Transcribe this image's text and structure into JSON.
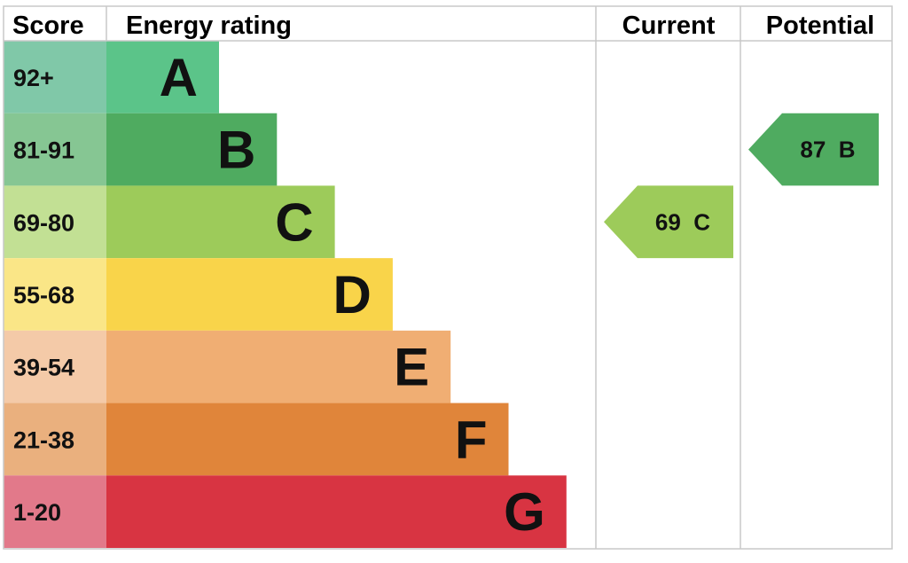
{
  "headers": {
    "score": "Score",
    "energy_rating": "Energy rating",
    "current": "Current",
    "potential": "Potential"
  },
  "chart_data": {
    "type": "bar",
    "bands": [
      {
        "letter": "A",
        "range": "92+",
        "min": 92,
        "max": 100,
        "color": "#5bc489",
        "score_bg": "#80c8a8"
      },
      {
        "letter": "B",
        "range": "81-91",
        "min": 81,
        "max": 91,
        "color": "#4fab60",
        "score_bg": "#86c693"
      },
      {
        "letter": "C",
        "range": "69-80",
        "min": 69,
        "max": 80,
        "color": "#9dcb5a",
        "score_bg": "#c2e094"
      },
      {
        "letter": "D",
        "range": "55-68",
        "min": 55,
        "max": 68,
        "color": "#f9d44a",
        "score_bg": "#fae687"
      },
      {
        "letter": "E",
        "range": "39-54",
        "min": 39,
        "max": 54,
        "color": "#f0ae73",
        "score_bg": "#f4caa8"
      },
      {
        "letter": "F",
        "range": "21-38",
        "min": 21,
        "max": 38,
        "color": "#e0853a",
        "score_bg": "#eab07e"
      },
      {
        "letter": "G",
        "range": "1-20",
        "min": 1,
        "max": 20,
        "color": "#d83442",
        "score_bg": "#e2798a"
      }
    ],
    "current": {
      "value": 69,
      "band": "C",
      "label": "69  C",
      "color": "#9dcb5a"
    },
    "potential": {
      "value": 87,
      "band": "B",
      "label": "87  B",
      "color": "#4fab60"
    }
  }
}
